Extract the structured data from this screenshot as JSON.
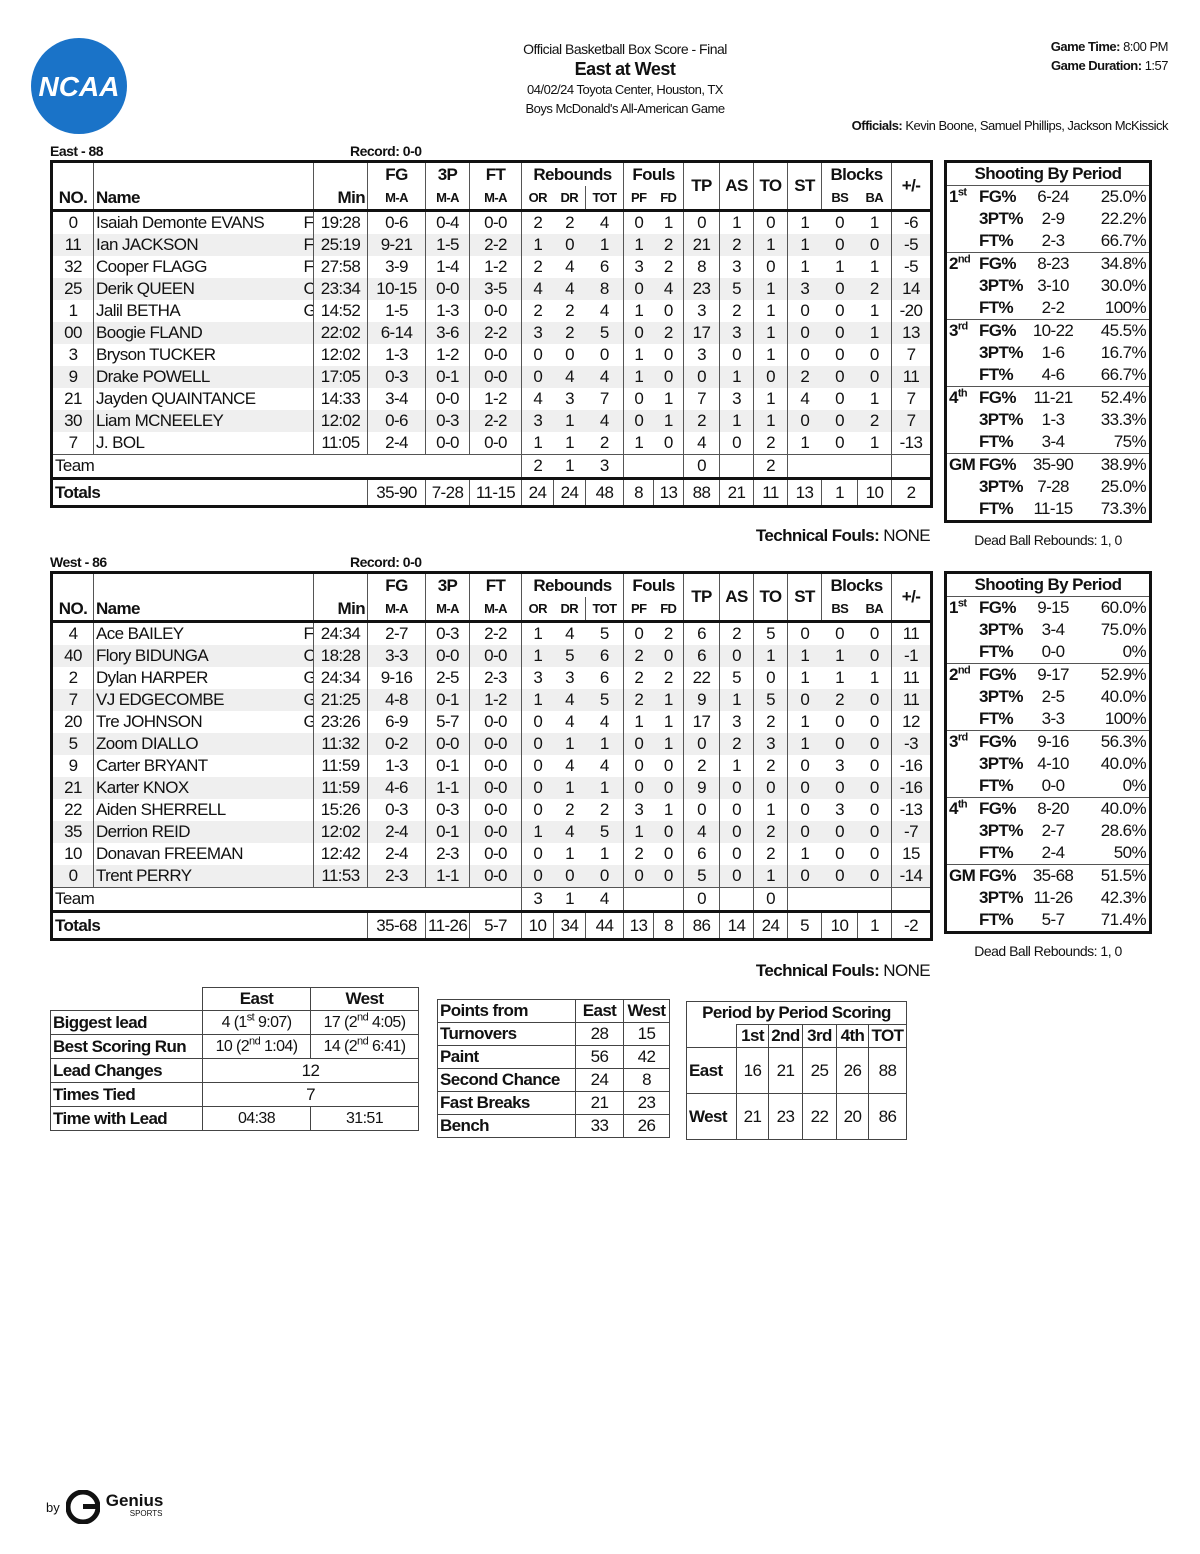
{
  "header": {
    "logo": "NCAA",
    "title": "Official Basketball Box Score - Final",
    "matchup": "East at West",
    "date_venue": "04/02/24 Toyota Center, Houston, TX",
    "event": "Boys McDonald's All-American Game",
    "game_time_label": "Game Time:",
    "game_time": "8:00 PM",
    "duration_label": "Game Duration:",
    "duration": "1:57",
    "officials_label": "Officials:",
    "officials": "Kevin Boone, Samuel Phillips, Jackson McKissick"
  },
  "columns": {
    "no": "NO.",
    "name": "Name",
    "min": "Min",
    "fg": "FG",
    "tp3": "3P",
    "ft": "FT",
    "rebounds": "Rebounds",
    "fouls": "Fouls",
    "tp": "TP",
    "as": "AS",
    "to": "TO",
    "st": "ST",
    "blocks": "Blocks",
    "pm": "+/-",
    "ma": "M-A",
    "or": "OR",
    "dr": "DR",
    "tot": "TOT",
    "pf": "PF",
    "fd": "FD",
    "bs": "BS",
    "ba": "BA"
  },
  "teams": [
    {
      "label": "East - 88",
      "record": "Record: 0-0",
      "players": [
        [
          "0",
          "Isaiah Demonte EVANS",
          "F",
          "19:28",
          "0-6",
          "0-4",
          "0-0",
          "2",
          "2",
          "4",
          "0",
          "1",
          "0",
          "1",
          "0",
          "1",
          "0",
          "1",
          "-6"
        ],
        [
          "11",
          "Ian JACKSON",
          "F",
          "25:19",
          "9-21",
          "1-5",
          "2-2",
          "1",
          "0",
          "1",
          "1",
          "2",
          "21",
          "2",
          "1",
          "1",
          "0",
          "0",
          "-5"
        ],
        [
          "32",
          "Cooper FLAGG",
          "F",
          "27:58",
          "3-9",
          "1-4",
          "1-2",
          "2",
          "4",
          "6",
          "3",
          "2",
          "8",
          "3",
          "0",
          "1",
          "1",
          "1",
          "-5"
        ],
        [
          "25",
          "Derik QUEEN",
          "C",
          "23:34",
          "10-15",
          "0-0",
          "3-5",
          "4",
          "4",
          "8",
          "0",
          "4",
          "23",
          "5",
          "1",
          "3",
          "0",
          "2",
          "14"
        ],
        [
          "1",
          "Jalil BETHA",
          "G",
          "14:52",
          "1-5",
          "1-3",
          "0-0",
          "2",
          "2",
          "4",
          "1",
          "0",
          "3",
          "2",
          "1",
          "0",
          "0",
          "1",
          "-20"
        ],
        [
          "00",
          "Boogie FLAND",
          null,
          "22:02",
          "6-14",
          "3-6",
          "2-2",
          "3",
          "2",
          "5",
          "0",
          "2",
          "17",
          "3",
          "1",
          "0",
          "0",
          "1",
          "13"
        ],
        [
          "3",
          "Bryson TUCKER",
          null,
          "12:02",
          "1-3",
          "1-2",
          "0-0",
          "0",
          "0",
          "0",
          "1",
          "0",
          "3",
          "0",
          "1",
          "0",
          "0",
          "0",
          "7"
        ],
        [
          "9",
          "Drake POWELL",
          null,
          "17:05",
          "0-3",
          "0-1",
          "0-0",
          "0",
          "4",
          "4",
          "1",
          "0",
          "0",
          "1",
          "0",
          "2",
          "0",
          "0",
          "11"
        ],
        [
          "21",
          "Jayden QUAINTANCE",
          null,
          "14:33",
          "3-4",
          "0-0",
          "1-2",
          "4",
          "3",
          "7",
          "0",
          "1",
          "7",
          "3",
          "1",
          "4",
          "0",
          "1",
          "7"
        ],
        [
          "30",
          "Liam MCNEELEY",
          null,
          "12:02",
          "0-6",
          "0-3",
          "2-2",
          "3",
          "1",
          "4",
          "0",
          "1",
          "2",
          "1",
          "1",
          "0",
          "0",
          "2",
          "7"
        ],
        [
          "7",
          "J. BOL",
          null,
          "11:05",
          "2-4",
          "0-0",
          "0-0",
          "1",
          "1",
          "2",
          "1",
          "0",
          "4",
          "0",
          "2",
          "1",
          "0",
          "1",
          "-13"
        ]
      ],
      "team_row": {
        "label": "Team",
        "or": "2",
        "dr": "1",
        "tot": "3",
        "tp": "0",
        "to": "2"
      },
      "totals": {
        "label": "Totals",
        "values": [
          "35-90",
          "7-28",
          "11-15",
          "24",
          "24",
          "48",
          "8",
          "13",
          "88",
          "21",
          "11",
          "13",
          "1",
          "10",
          "2"
        ]
      },
      "technical_label": "Technical Fouls:",
      "technical": "NONE",
      "shooting": {
        "title": "Shooting By Period",
        "periods": [
          {
            "label": "1",
            "sup": "st",
            "rows": [
              [
                "FG%",
                "6-24",
                "25.0%"
              ],
              [
                "3PT%",
                "2-9",
                "22.2%"
              ],
              [
                "FT%",
                "2-3",
                "66.7%"
              ]
            ]
          },
          {
            "label": "2",
            "sup": "nd",
            "rows": [
              [
                "FG%",
                "8-23",
                "34.8%"
              ],
              [
                "3PT%",
                "3-10",
                "30.0%"
              ],
              [
                "FT%",
                "2-2",
                "100%"
              ]
            ]
          },
          {
            "label": "3",
            "sup": "rd",
            "rows": [
              [
                "FG%",
                "10-22",
                "45.5%"
              ],
              [
                "3PT%",
                "1-6",
                "16.7%"
              ],
              [
                "FT%",
                "4-6",
                "66.7%"
              ]
            ]
          },
          {
            "label": "4",
            "sup": "th",
            "rows": [
              [
                "FG%",
                "11-21",
                "52.4%"
              ],
              [
                "3PT%",
                "1-3",
                "33.3%"
              ],
              [
                "FT%",
                "3-4",
                "75%"
              ]
            ]
          },
          {
            "label": "GM",
            "rows": [
              [
                "FG%",
                "35-90",
                "38.9%"
              ],
              [
                "3PT%",
                "7-28",
                "25.0%"
              ],
              [
                "FT%",
                "11-15",
                "73.3%"
              ]
            ]
          }
        ],
        "dead_ball": "Dead Ball Rebounds: 1, 0"
      }
    },
    {
      "label": "West - 86",
      "record": "Record: 0-0",
      "players": [
        [
          "4",
          "Ace BAILEY",
          "F",
          "24:34",
          "2-7",
          "0-3",
          "2-2",
          "1",
          "4",
          "5",
          "0",
          "2",
          "6",
          "2",
          "5",
          "0",
          "0",
          "0",
          "11"
        ],
        [
          "40",
          "Flory BIDUNGA",
          "C",
          "18:28",
          "3-3",
          "0-0",
          "0-0",
          "1",
          "5",
          "6",
          "2",
          "0",
          "6",
          "0",
          "1",
          "1",
          "1",
          "0",
          "-1"
        ],
        [
          "2",
          "Dylan HARPER",
          "G",
          "24:34",
          "9-16",
          "2-5",
          "2-3",
          "3",
          "3",
          "6",
          "2",
          "2",
          "22",
          "5",
          "0",
          "1",
          "1",
          "1",
          "11"
        ],
        [
          "7",
          "VJ EDGECOMBE",
          "G",
          "21:25",
          "4-8",
          "0-1",
          "1-2",
          "1",
          "4",
          "5",
          "2",
          "1",
          "9",
          "1",
          "5",
          "0",
          "2",
          "0",
          "11"
        ],
        [
          "20",
          "Tre JOHNSON",
          "G",
          "23:26",
          "6-9",
          "5-7",
          "0-0",
          "0",
          "4",
          "4",
          "1",
          "1",
          "17",
          "3",
          "2",
          "1",
          "0",
          "0",
          "12"
        ],
        [
          "5",
          "Zoom DIALLO",
          null,
          "11:32",
          "0-2",
          "0-0",
          "0-0",
          "0",
          "1",
          "1",
          "0",
          "1",
          "0",
          "2",
          "3",
          "1",
          "0",
          "0",
          "-3"
        ],
        [
          "9",
          "Carter BRYANT",
          null,
          "11:59",
          "1-3",
          "0-1",
          "0-0",
          "0",
          "4",
          "4",
          "0",
          "0",
          "2",
          "1",
          "2",
          "0",
          "3",
          "0",
          "-16"
        ],
        [
          "21",
          "Karter KNOX",
          null,
          "11:59",
          "4-6",
          "1-1",
          "0-0",
          "0",
          "1",
          "1",
          "0",
          "0",
          "9",
          "0",
          "0",
          "0",
          "0",
          "0",
          "-16"
        ],
        [
          "22",
          "Aiden SHERRELL",
          null,
          "15:26",
          "0-3",
          "0-3",
          "0-0",
          "0",
          "2",
          "2",
          "3",
          "1",
          "0",
          "0",
          "1",
          "0",
          "3",
          "0",
          "-13"
        ],
        [
          "35",
          "Derrion REID",
          null,
          "12:02",
          "2-4",
          "0-1",
          "0-0",
          "1",
          "4",
          "5",
          "1",
          "0",
          "4",
          "0",
          "2",
          "0",
          "0",
          "0",
          "-7"
        ],
        [
          "10",
          "Donavan FREEMAN",
          null,
          "12:42",
          "2-4",
          "2-3",
          "0-0",
          "0",
          "1",
          "1",
          "2",
          "0",
          "6",
          "0",
          "2",
          "1",
          "0",
          "0",
          "15"
        ],
        [
          "0",
          "Trent PERRY",
          null,
          "11:53",
          "2-3",
          "1-1",
          "0-0",
          "0",
          "0",
          "0",
          "0",
          "0",
          "5",
          "0",
          "1",
          "0",
          "0",
          "0",
          "-14"
        ]
      ],
      "team_row": {
        "label": "Team",
        "or": "3",
        "dr": "1",
        "tot": "4",
        "tp": "0",
        "to": "0"
      },
      "totals": {
        "label": "Totals",
        "values": [
          "35-68",
          "11-26",
          "5-7",
          "10",
          "34",
          "44",
          "13",
          "8",
          "86",
          "14",
          "24",
          "5",
          "10",
          "1",
          "-2"
        ]
      },
      "technical_label": "Technical Fouls:",
      "technical": "NONE",
      "shooting": {
        "title": "Shooting By Period",
        "periods": [
          {
            "label": "1",
            "sup": "st",
            "rows": [
              [
                "FG%",
                "9-15",
                "60.0%"
              ],
              [
                "3PT%",
                "3-4",
                "75.0%"
              ],
              [
                "FT%",
                "0-0",
                "0%"
              ]
            ]
          },
          {
            "label": "2",
            "sup": "nd",
            "rows": [
              [
                "FG%",
                "9-17",
                "52.9%"
              ],
              [
                "3PT%",
                "2-5",
                "40.0%"
              ],
              [
                "FT%",
                "3-3",
                "100%"
              ]
            ]
          },
          {
            "label": "3",
            "sup": "rd",
            "rows": [
              [
                "FG%",
                "9-16",
                "56.3%"
              ],
              [
                "3PT%",
                "4-10",
                "40.0%"
              ],
              [
                "FT%",
                "0-0",
                "0%"
              ]
            ]
          },
          {
            "label": "4",
            "sup": "th",
            "rows": [
              [
                "FG%",
                "8-20",
                "40.0%"
              ],
              [
                "3PT%",
                "2-7",
                "28.6%"
              ],
              [
                "FT%",
                "2-4",
                "50%"
              ]
            ]
          },
          {
            "label": "GM",
            "rows": [
              [
                "FG%",
                "35-68",
                "51.5%"
              ],
              [
                "3PT%",
                "11-26",
                "42.3%"
              ],
              [
                "FT%",
                "5-7",
                "71.4%"
              ]
            ]
          }
        ],
        "dead_ball": "Dead Ball Rebounds: 1, 0"
      }
    }
  ],
  "game_stats": {
    "headers": [
      "East",
      "West"
    ],
    "rows": [
      {
        "label": "Biggest lead",
        "east": [
          "4 (1",
          "st",
          "9:07)"
        ],
        "west": [
          "17 (2",
          "nd",
          "4:05)"
        ]
      },
      {
        "label": "Best Scoring Run",
        "east": [
          "10 (2",
          "nd",
          "1:04)"
        ],
        "west": [
          "14 (2",
          "nd",
          "6:41)"
        ]
      },
      {
        "label": "Lead Changes",
        "both": "12"
      },
      {
        "label": "Times Tied",
        "both": "7"
      },
      {
        "label": "Time with Lead",
        "east": "04:38",
        "west": "31:51"
      }
    ]
  },
  "points_from": {
    "headers": [
      "Points from",
      "East",
      "West"
    ],
    "rows": [
      [
        "Turnovers",
        "28",
        "15"
      ],
      [
        "Paint",
        "56",
        "42"
      ],
      [
        "Second Chance",
        "24",
        "8"
      ],
      [
        "Fast Breaks",
        "21",
        "23"
      ],
      [
        "Bench",
        "33",
        "26"
      ]
    ]
  },
  "period_scoring": {
    "title": "Period by Period Scoring",
    "headers": [
      "1st",
      "2nd",
      "3rd",
      "4th",
      "TOT"
    ],
    "rows": [
      [
        "East",
        "16",
        "21",
        "25",
        "26",
        "88"
      ],
      [
        "West",
        "21",
        "23",
        "22",
        "20",
        "86"
      ]
    ]
  },
  "footer": {
    "by": "by",
    "brand": "Genius",
    "sub": "SPORTS"
  }
}
